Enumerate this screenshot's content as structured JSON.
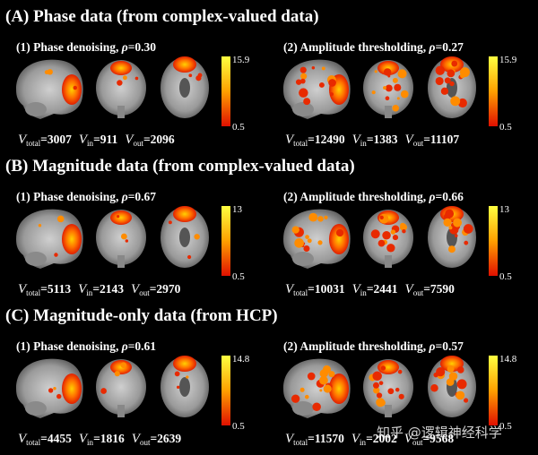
{
  "watermark": "知乎 @逻辑神经科学",
  "sections": [
    {
      "title": "(A) Phase data (from complex-valued data)",
      "panels": [
        {
          "title": "(1) Phase denoising, ",
          "rho": "ρ",
          "rho_value": "=0.30",
          "cmax": "15.9",
          "cmin": "0.5",
          "stats": [
            {
              "symbol": "V",
              "sub": "total",
              "value": "=3007"
            },
            {
              "symbol": "V",
              "sub": "in",
              "value": "=911"
            },
            {
              "symbol": "V",
              "sub": "out",
              "value": "=2096"
            }
          ]
        },
        {
          "title": "(2) Amplitude thresholding, ",
          "rho": "ρ",
          "rho_value": "=0.27",
          "cmax": "15.9",
          "cmin": "0.5",
          "stats": [
            {
              "symbol": "V",
              "sub": "total",
              "value": "=12490"
            },
            {
              "symbol": "V",
              "sub": "in",
              "value": "=1383"
            },
            {
              "symbol": "V",
              "sub": "out",
              "value": "=11107"
            }
          ]
        }
      ]
    },
    {
      "title": "(B) Magnitude data (from complex-valued data)",
      "panels": [
        {
          "title": "(1) Phase denoising, ",
          "rho": "ρ",
          "rho_value": "=0.67",
          "cmax": "13",
          "cmin": "0.5",
          "stats": [
            {
              "symbol": "V",
              "sub": "total",
              "value": "=5113"
            },
            {
              "symbol": "V",
              "sub": "in",
              "value": "=2143"
            },
            {
              "symbol": "V",
              "sub": "out",
              "value": "=2970"
            }
          ]
        },
        {
          "title": "(2) Amplitude thresholding, ",
          "rho": "ρ",
          "rho_value": "=0.66",
          "cmax": "13",
          "cmin": "0.5",
          "stats": [
            {
              "symbol": "V",
              "sub": "total",
              "value": "=10031"
            },
            {
              "symbol": "V",
              "sub": "in",
              "value": "=2441"
            },
            {
              "symbol": "V",
              "sub": "out",
              "value": "=7590"
            }
          ]
        }
      ]
    },
    {
      "title": "(C) Magnitude-only data (from HCP)",
      "panels": [
        {
          "title": "(1) Phase denoising, ",
          "rho": "ρ",
          "rho_value": "=0.61",
          "cmax": "14.8",
          "cmin": "0.5",
          "stats": [
            {
              "symbol": "V",
              "sub": "total",
              "value": "=4455"
            },
            {
              "symbol": "V",
              "sub": "in",
              "value": "=1816"
            },
            {
              "symbol": "V",
              "sub": "out",
              "value": "=2639"
            }
          ]
        },
        {
          "title": "(2) Amplitude thresholding, ",
          "rho": "ρ",
          "rho_value": "=0.57",
          "cmax": "14.8",
          "cmin": "0.5",
          "stats": [
            {
              "symbol": "V",
              "sub": "total",
              "value": "=11570"
            },
            {
              "symbol": "V",
              "sub": "in",
              "value": "=2002"
            },
            {
              "symbol": "V",
              "sub": "out",
              "value": "=9568"
            }
          ]
        }
      ]
    }
  ]
}
